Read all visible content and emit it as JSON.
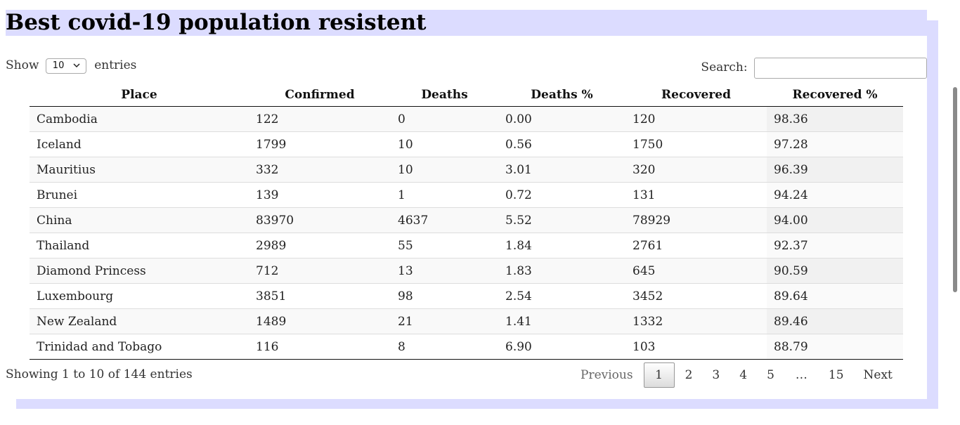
{
  "page": {
    "title": "Best covid-19 population resistent"
  },
  "controls": {
    "show_label": "Show",
    "length_value": "10",
    "entries_label": "entries",
    "search_label": "Search:",
    "search_value": ""
  },
  "table": {
    "columns": [
      "Place",
      "Confirmed",
      "Deaths",
      "Deaths %",
      "Recovered",
      "Recovered %"
    ],
    "sorted_column": "Recovered %",
    "rows": [
      [
        "Cambodia",
        "122",
        "0",
        "0.00",
        "120",
        "98.36"
      ],
      [
        "Iceland",
        "1799",
        "10",
        "0.56",
        "1750",
        "97.28"
      ],
      [
        "Mauritius",
        "332",
        "10",
        "3.01",
        "320",
        "96.39"
      ],
      [
        "Brunei",
        "139",
        "1",
        "0.72",
        "131",
        "94.24"
      ],
      [
        "China",
        "83970",
        "4637",
        "5.52",
        "78929",
        "94.00"
      ],
      [
        "Thailand",
        "2989",
        "55",
        "1.84",
        "2761",
        "92.37"
      ],
      [
        "Diamond Princess",
        "712",
        "13",
        "1.83",
        "645",
        "90.59"
      ],
      [
        "Luxembourg",
        "3851",
        "98",
        "2.54",
        "3452",
        "89.64"
      ],
      [
        "New Zealand",
        "1489",
        "21",
        "1.41",
        "1332",
        "89.46"
      ],
      [
        "Trinidad and Tobago",
        "116",
        "8",
        "6.90",
        "103",
        "88.79"
      ]
    ]
  },
  "footer": {
    "info": "Showing 1 to 10 of 144 entries",
    "previous": "Previous",
    "next": "Next",
    "pages": [
      "1",
      "2",
      "3",
      "4",
      "5",
      "…",
      "15"
    ],
    "current_page": "1"
  },
  "icons": {
    "select_chevron": "chevron-down-icon"
  },
  "colors": {
    "title_background": "#dcdcff",
    "frame_background": "#dcdcff",
    "current_page_border": "#979797"
  }
}
